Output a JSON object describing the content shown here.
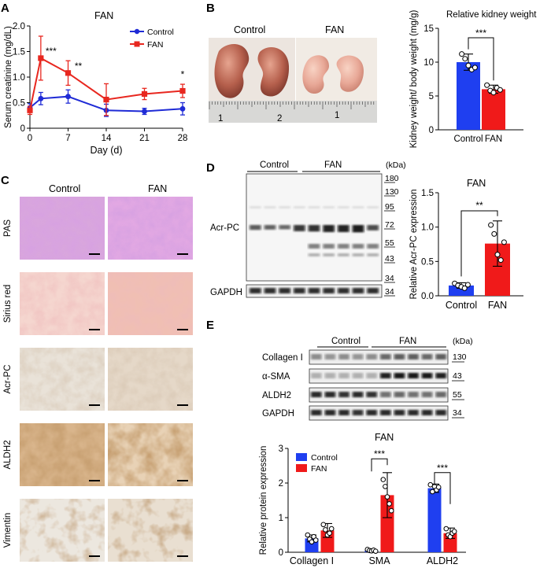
{
  "panels": {
    "a": "A",
    "b": "B",
    "c": "C",
    "d": "D",
    "e": "E"
  },
  "colors": {
    "control": "#1f2bd6",
    "fan": "#e8271f",
    "bar_control": "#1f3ff0",
    "bar_fan": "#f01a1a"
  },
  "panelA": {
    "title": "FAN",
    "legend": [
      "Control",
      "FAN"
    ],
    "sig": [
      "***",
      "**",
      "*"
    ]
  },
  "panelB": {
    "photo_labels": [
      "Control",
      "FAN"
    ],
    "ruler_marks": [
      "1",
      "2",
      "1"
    ],
    "chart_title": "Relative kidney weight",
    "sig": "***"
  },
  "panelC": {
    "col_labels": [
      "Control",
      "FAN"
    ],
    "row_labels": [
      "PAS",
      "Sirius red",
      "Acr-PC",
      "ALDH2",
      "Vimentin"
    ]
  },
  "panelD": {
    "group_labels": [
      "Control",
      "FAN"
    ],
    "kda": "(kDa)",
    "markers": [
      "180",
      "130",
      "95",
      "72",
      "55",
      "43",
      "34"
    ],
    "gapdh_marker": "34",
    "blot_label": "Acr-PC",
    "gapdh_label": "GAPDH",
    "chart_title": "FAN",
    "sig": "**"
  },
  "panelE": {
    "group_labels": [
      "Control",
      "FAN"
    ],
    "kda": "(kDa)",
    "rows": [
      {
        "label": "Collagen I",
        "marker": "130"
      },
      {
        "label": "α-SMA",
        "marker": "43"
      },
      {
        "label": "ALDH2",
        "marker": "55"
      },
      {
        "label": "GAPDH",
        "marker": "34"
      }
    ],
    "chart_title": "FAN",
    "legend": [
      "Control",
      "FAN"
    ],
    "sig": [
      "***",
      "***"
    ]
  },
  "chart_data": [
    {
      "type": "line",
      "title": "FAN",
      "xlabel": "Day (d)",
      "ylabel": "Serum creatinine (mg/dL)",
      "x": [
        0,
        2,
        7,
        14,
        21,
        28
      ],
      "xticks": [
        "0",
        "7",
        "14",
        "21",
        "28"
      ],
      "xtick_values": [
        0,
        7,
        14,
        21,
        28
      ],
      "yticks": [
        "0",
        "0.5",
        "1.0",
        "1.5",
        "2.0"
      ],
      "ylim": [
        0,
        2.0
      ],
      "xlim": [
        0,
        28
      ],
      "series": [
        {
          "name": "Control",
          "values": [
            0.4,
            0.58,
            0.62,
            0.35,
            0.33,
            0.38
          ],
          "errors": [
            0.08,
            0.12,
            0.13,
            0.12,
            0.06,
            0.12
          ]
        },
        {
          "name": "FAN",
          "values": [
            0.35,
            1.37,
            1.08,
            0.56,
            0.67,
            0.73
          ],
          "errors": [
            0.08,
            0.43,
            0.24,
            0.31,
            0.11,
            0.13
          ]
        }
      ],
      "annotations": [
        {
          "x": 2,
          "text": "***"
        },
        {
          "x": 7,
          "text": "**"
        },
        {
          "x": 28,
          "text": "*"
        }
      ],
      "legend": "top-right"
    },
    {
      "type": "bar",
      "title": "Relative kidney weight",
      "categories": [
        "Control",
        "FAN"
      ],
      "values": [
        10.0,
        6.0
      ],
      "errors": [
        1.2,
        0.6
      ],
      "points": [
        [
          11.2,
          10.5,
          9.5,
          8.9,
          9.2
        ],
        [
          6.6,
          5.8,
          5.5,
          6.2,
          5.9
        ]
      ],
      "ylabel": "Kidney weight/ body weight (mg/g)",
      "yticks": [
        "0",
        "5",
        "10",
        "15"
      ],
      "ylim": [
        0,
        15
      ],
      "annotations": [
        {
          "text": "***"
        }
      ]
    },
    {
      "type": "bar",
      "title": "FAN",
      "categories": [
        "Control",
        "FAN"
      ],
      "values": [
        0.15,
        0.76
      ],
      "errors": [
        0.04,
        0.33
      ],
      "points": [
        [
          0.18,
          0.15,
          0.13,
          0.11,
          0.16
        ],
        [
          1.03,
          0.9,
          0.6,
          0.52,
          0.78
        ]
      ],
      "ylabel": "Relative Acr-PC expression",
      "yticks": [
        "0.0",
        "0.5",
        "1.0",
        "1.5"
      ],
      "ylim": [
        0,
        1.5
      ],
      "annotations": [
        {
          "text": "**"
        }
      ]
    },
    {
      "type": "bar",
      "title": "FAN",
      "categories": [
        "Collagen I",
        "SMA",
        "ALDH2"
      ],
      "series": [
        {
          "name": "Control",
          "values": [
            0.4,
            0.05,
            1.85
          ],
          "errors": [
            0.1,
            0.03,
            0.12
          ],
          "points": [
            [
              0.5,
              0.38,
              0.3,
              0.45,
              0.35
            ],
            [
              0.08,
              0.05,
              0.04,
              0.06,
              0.03
            ],
            [
              1.95,
              1.75,
              1.9,
              1.8,
              1.88
            ]
          ]
        },
        {
          "name": "FAN",
          "values": [
            0.63,
            1.65,
            0.55
          ],
          "errors": [
            0.2,
            0.65,
            0.15
          ],
          "points": [
            [
              0.8,
              0.65,
              0.5,
              0.55,
              0.68
            ],
            [
              2.1,
              1.9,
              1.6,
              1.4,
              1.2
            ],
            [
              0.68,
              0.5,
              0.45,
              0.55,
              0.6
            ]
          ]
        }
      ],
      "ylabel": "Relative protein expression",
      "yticks": [
        "0",
        "1",
        "2",
        "3"
      ],
      "ylim": [
        0,
        3
      ],
      "annotations": [
        {
          "text": "***"
        },
        {
          "text": "***"
        }
      ],
      "legend": "top-left"
    }
  ]
}
